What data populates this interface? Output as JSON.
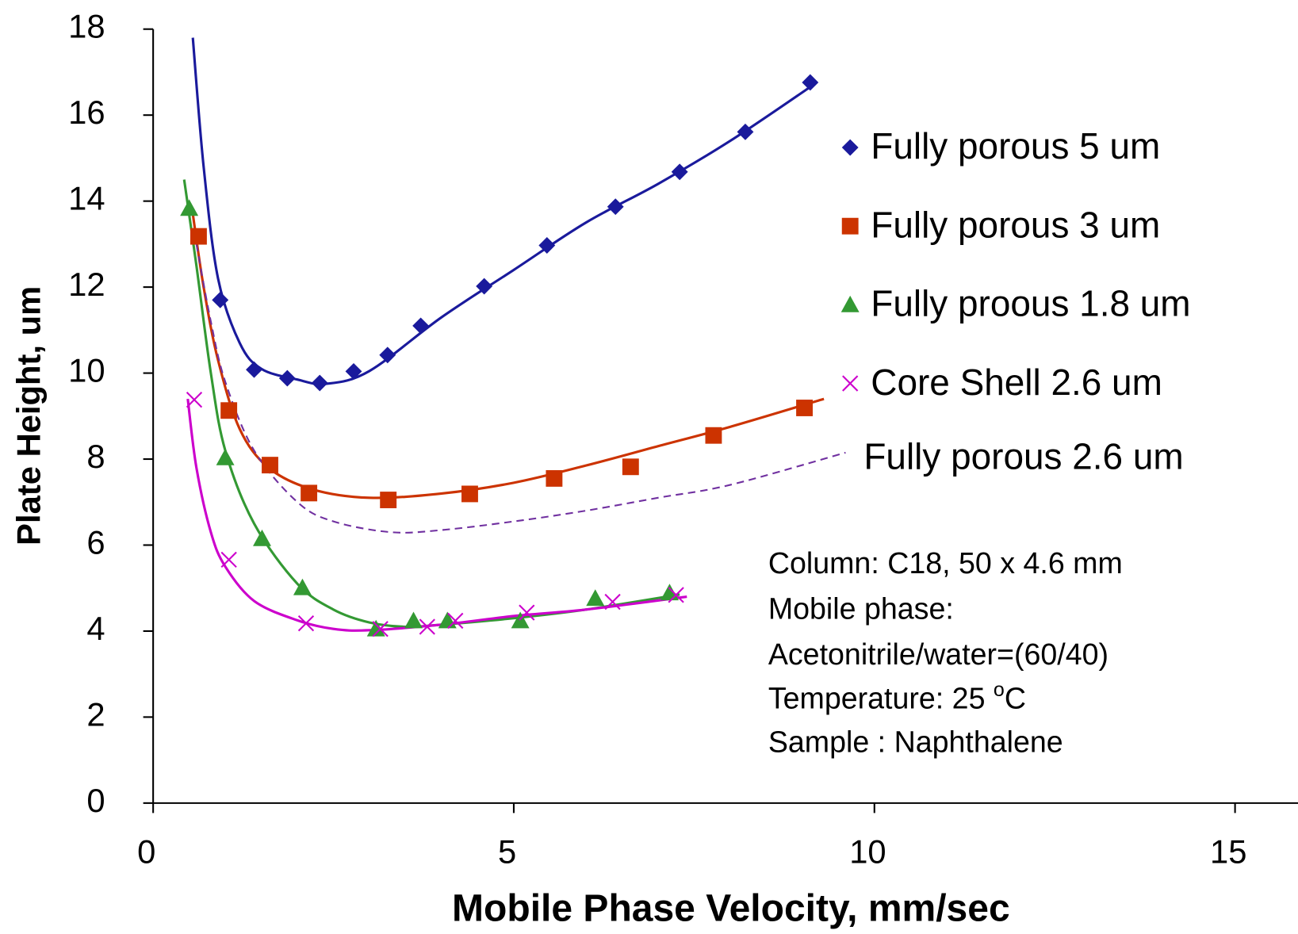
{
  "chart_data": {
    "type": "scatter",
    "xlabel": "Mobile  Phase Velocity, mm/sec",
    "ylabel": "Plate Height, um",
    "xlim": [
      0,
      16
    ],
    "ylim": [
      0,
      18
    ],
    "xticks": [
      0,
      5,
      10,
      15
    ],
    "yticks": [
      0,
      2,
      4,
      6,
      8,
      10,
      12,
      14,
      16,
      18
    ],
    "legend": "upper right",
    "series": [
      {
        "name": "Fully porous 5 um",
        "color": "#1a1a9c",
        "marker": "diamond",
        "x": [
          0.93,
          1.4,
          1.86,
          2.31,
          2.78,
          3.25,
          3.71,
          4.59,
          5.46,
          6.41,
          7.3,
          8.21,
          9.11
        ],
        "values": [
          11.7,
          10.08,
          9.88,
          9.77,
          10.04,
          10.42,
          11.1,
          12.02,
          12.97,
          13.87,
          14.68,
          15.61,
          16.76
        ]
      },
      {
        "name": "Fully porous 3 um",
        "color": "#cc3300",
        "marker": "square",
        "x": [
          0.63,
          1.05,
          1.62,
          2.16,
          3.26,
          4.39,
          5.56,
          6.62,
          7.77,
          9.03
        ],
        "values": [
          13.18,
          9.13,
          7.86,
          7.21,
          7.05,
          7.19,
          7.55,
          7.82,
          8.55,
          9.19
        ]
      },
      {
        "name": "Fully proous 1.8 um",
        "color": "#339933",
        "marker": "triangle",
        "x": [
          0.5,
          1.0,
          1.51,
          2.07,
          3.09,
          3.61,
          4.08,
          5.09,
          6.13,
          7.16
        ],
        "values": [
          13.83,
          8.03,
          6.15,
          5.01,
          4.05,
          4.24,
          4.24,
          4.24,
          4.76,
          4.89
        ]
      },
      {
        "name": "Core Shell 2.6 um",
        "color": "#cc00cc",
        "marker": "cross",
        "x": [
          0.57,
          1.05,
          2.12,
          3.15,
          3.8,
          4.19,
          5.18,
          6.37,
          7.25
        ],
        "values": [
          9.38,
          5.66,
          4.18,
          4.05,
          4.1,
          4.24,
          4.43,
          4.68,
          4.84
        ]
      }
    ],
    "curves": [
      {
        "color": "#1a1a9c",
        "dashed": false,
        "x": [
          0.55,
          0.7,
          0.9,
          1.2,
          1.5,
          2.0,
          2.4,
          3.0,
          4,
          5,
          6,
          7,
          8,
          9.15
        ],
        "values": [
          17.8,
          14.8,
          12.2,
          10.7,
          10.1,
          9.85,
          9.75,
          10.05,
          11.3,
          12.4,
          13.5,
          14.4,
          15.4,
          16.7
        ]
      },
      {
        "color": "#cc3300",
        "dashed": false,
        "x": [
          0.55,
          0.7,
          0.9,
          1.2,
          1.6,
          2.2,
          3.0,
          4,
          5,
          6,
          7,
          8,
          9.3
        ],
        "values": [
          13.7,
          12.0,
          10.3,
          8.7,
          7.8,
          7.3,
          7.1,
          7.2,
          7.45,
          7.85,
          8.3,
          8.75,
          9.4
        ]
      },
      {
        "name": "Fully porous 2.6 um",
        "color": "#7030a0",
        "dashed": true,
        "x": [
          0.6,
          0.8,
          1.0,
          1.4,
          2.0,
          2.5,
          3.3,
          4,
          5,
          6,
          7,
          8,
          9.6
        ],
        "values": [
          13.0,
          11.2,
          9.8,
          8.2,
          7.0,
          6.55,
          6.3,
          6.35,
          6.55,
          6.8,
          7.1,
          7.4,
          8.15
        ]
      },
      {
        "color": "#339933",
        "dashed": false,
        "x": [
          0.43,
          0.6,
          0.8,
          1.0,
          1.4,
          2.0,
          2.5,
          3.0,
          3.5,
          4,
          5,
          6,
          7.3
        ],
        "values": [
          14.5,
          12.5,
          10.0,
          8.2,
          6.5,
          5.1,
          4.5,
          4.2,
          4.1,
          4.15,
          4.3,
          4.5,
          4.85
        ]
      },
      {
        "color": "#cc00cc",
        "dashed": false,
        "x": [
          0.48,
          0.6,
          0.8,
          1.0,
          1.4,
          2.0,
          2.5,
          3.0,
          4,
          5,
          6,
          7.4
        ],
        "values": [
          9.4,
          7.8,
          6.3,
          5.5,
          4.7,
          4.25,
          4.05,
          4.02,
          4.15,
          4.35,
          4.5,
          4.8
        ]
      }
    ],
    "annotation": {
      "lines": [
        "Column: C18, 50 x 4.6 mm",
        "Mobile phase:",
        "Acetonitrile/water=(60/40)"
      ],
      "temperature": {
        "text": "Temperature: 25 ",
        "sup": "o",
        "after": "C"
      },
      "sample": "Sample : Naphthalene"
    }
  }
}
